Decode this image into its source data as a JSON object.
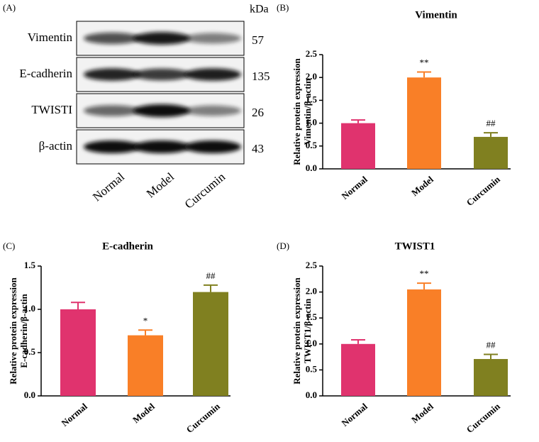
{
  "panel_a": {
    "label": "(A)",
    "unit": "kDa",
    "proteins": [
      "Vimentin",
      "E-cadherin",
      "TWISTI",
      "β-actin"
    ],
    "kda": [
      57,
      135,
      26,
      43
    ],
    "lanes": [
      "Normal",
      "Model",
      "Curcumin"
    ]
  },
  "chart_data": [
    {
      "type": "bar",
      "label": "(B)",
      "title": "Vimentin",
      "ylabel": [
        "Relative protein expression",
        "Vimentin/β-actin"
      ],
      "categories": [
        "Normal",
        "Model",
        "Curcumin"
      ],
      "values": [
        1.0,
        2.0,
        0.7
      ],
      "errors": [
        0.07,
        0.12,
        0.09
      ],
      "annotations": [
        null,
        "**",
        "##"
      ],
      "colors": [
        "#e0336e",
        "#f97f27",
        "#808020"
      ],
      "ylim": [
        0,
        2.5
      ],
      "yticks": [
        {
          "value": 0,
          "label": "0.0"
        },
        0.5,
        {
          "value": 1,
          "label": "1.0"
        },
        1.5,
        {
          "value": 2,
          "label": "2.0"
        },
        2.5
      ]
    },
    {
      "type": "bar",
      "label": "(C)",
      "title": "E-cadherin",
      "ylabel": [
        "Relative protein expression",
        "E-cadherin/β-actin"
      ],
      "categories": [
        "Normal",
        "Model",
        "Curcumin"
      ],
      "values": [
        1.0,
        0.7,
        1.2
      ],
      "errors": [
        0.08,
        0.06,
        0.08
      ],
      "annotations": [
        null,
        "*",
        "##"
      ],
      "colors": [
        "#e0336e",
        "#f97f27",
        "#808020"
      ],
      "ylim": [
        0,
        1.5
      ],
      "yticks": [
        {
          "value": 0,
          "label": "0.0"
        },
        0.5,
        {
          "value": 1,
          "label": "1.0"
        },
        1.5
      ]
    },
    {
      "type": "bar",
      "label": "(D)",
      "title": "TWIST1",
      "ylabel": [
        "Relative protein expression",
        "TWIST1/β-actin"
      ],
      "categories": [
        "Normal",
        "Model",
        "Curcumin"
      ],
      "values": [
        1.0,
        2.05,
        0.71
      ],
      "errors": [
        0.08,
        0.12,
        0.09
      ],
      "annotations": [
        null,
        "**",
        "##"
      ],
      "colors": [
        "#e0336e",
        "#f97f27",
        "#808020"
      ],
      "ylim": [
        0,
        2.5
      ],
      "yticks": [
        {
          "value": 0,
          "label": "0.0"
        },
        0.5,
        {
          "value": 1,
          "label": "1.0"
        },
        1.5,
        {
          "value": 2,
          "label": "2.0"
        },
        2.5
      ]
    }
  ]
}
